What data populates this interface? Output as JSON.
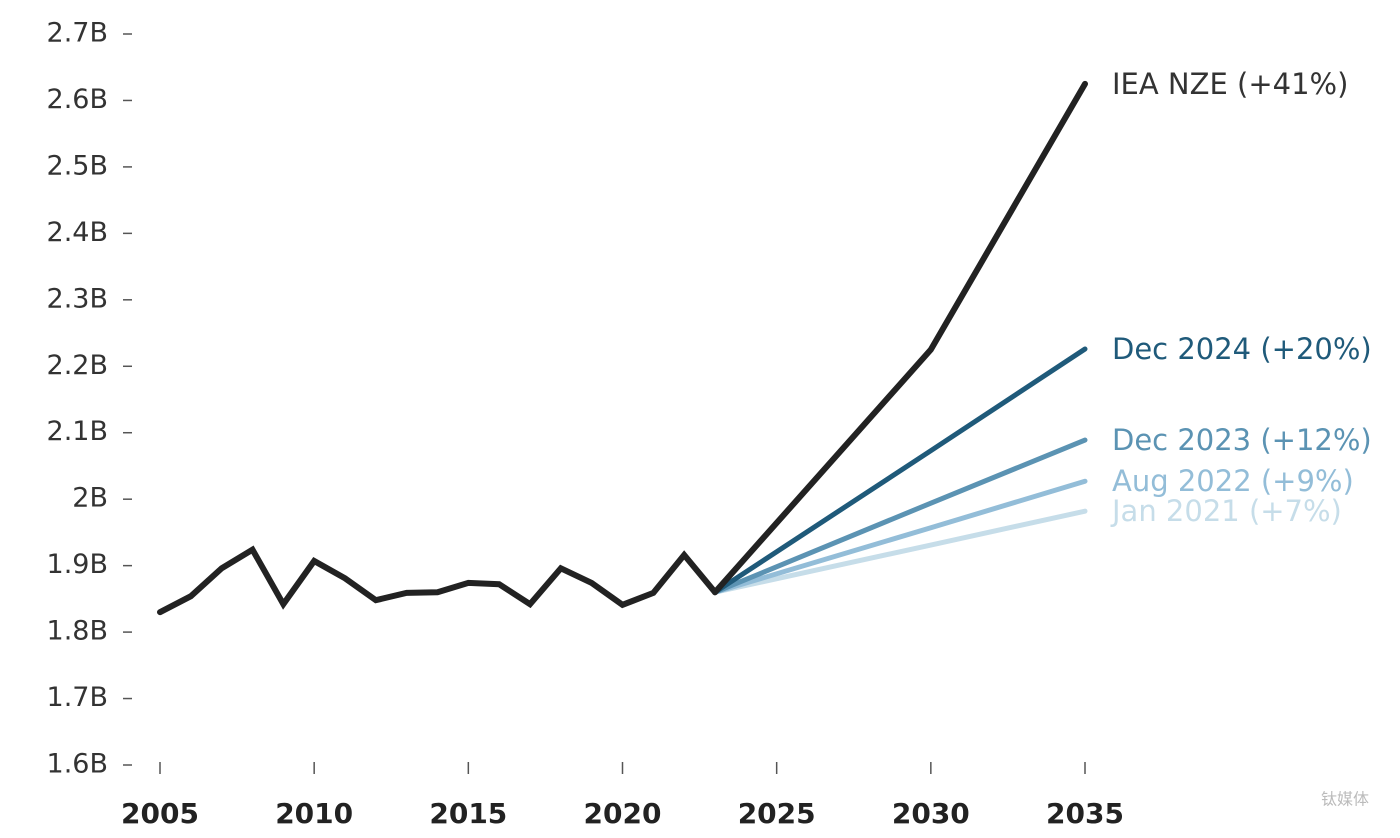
{
  "chart_data": {
    "type": "line",
    "x": [
      2005,
      2006,
      2007,
      2008,
      2009,
      2010,
      2011,
      2012,
      2013,
      2014,
      2015,
      2016,
      2017,
      2018,
      2019,
      2020,
      2021,
      2022,
      2023,
      2030,
      2035
    ],
    "series": [
      {
        "color": "#222222",
        "values": [
          1.83,
          1.854,
          1.896,
          1.924,
          1.842,
          1.907,
          1.881,
          1.848,
          1.859,
          1.86,
          1.874,
          1.872,
          1.842,
          1.896,
          1.874,
          1.841,
          1.859,
          1.916,
          1.86,
          null,
          null
        ]
      },
      {
        "name": "IEA NZE (+41%)",
        "color": "#222222",
        "values": [
          null,
          null,
          null,
          null,
          null,
          null,
          null,
          null,
          null,
          null,
          null,
          null,
          null,
          null,
          null,
          null,
          null,
          null,
          1.86,
          2.225,
          2.625
        ]
      },
      {
        "name": "Dec 2024 (+20%)",
        "color": "#1f5a7a",
        "values": [
          null,
          null,
          null,
          null,
          null,
          null,
          null,
          null,
          null,
          null,
          null,
          null,
          null,
          null,
          null,
          null,
          null,
          null,
          1.86,
          2.073,
          2.226
        ]
      },
      {
        "name": "Dec 2023 (+12%)",
        "color": "#5b93b3",
        "values": [
          null,
          null,
          null,
          null,
          null,
          null,
          null,
          null,
          null,
          null,
          null,
          null,
          null,
          null,
          null,
          null,
          null,
          null,
          1.86,
          1.994,
          2.089
        ]
      },
      {
        "name": "Aug 2022 (+9%)",
        "color": "#93bdd8",
        "values": [
          null,
          null,
          null,
          null,
          null,
          null,
          null,
          null,
          null,
          null,
          null,
          null,
          null,
          null,
          null,
          null,
          null,
          null,
          1.86,
          1.957,
          2.027
        ]
      },
      {
        "name": "Jan 2021 (+7%)",
        "color": "#c6dde9",
        "values": [
          null,
          null,
          null,
          null,
          null,
          null,
          null,
          null,
          null,
          null,
          null,
          null,
          null,
          null,
          null,
          null,
          null,
          null,
          1.86,
          1.931,
          1.982
        ]
      }
    ],
    "xlim": [
      2005,
      2035
    ],
    "xticks": [
      2005,
      2010,
      2015,
      2020,
      2025,
      2030,
      2035
    ],
    "ylim": [
      1.6,
      2.7
    ],
    "yticks": [
      {
        "value": 1.6,
        "label": "1.6B"
      },
      {
        "value": 1.7,
        "label": "1.7B"
      },
      {
        "value": 1.8,
        "label": "1.8B"
      },
      {
        "value": 1.9,
        "label": "1.9B"
      },
      {
        "value": 2.0,
        "label": "2B"
      },
      {
        "value": 2.1,
        "label": "2.1B"
      },
      {
        "value": 2.2,
        "label": "2.2B"
      },
      {
        "value": 2.3,
        "label": "2.3B"
      },
      {
        "value": 2.4,
        "label": "2.4B"
      },
      {
        "value": 2.5,
        "label": "2.5B"
      },
      {
        "value": 2.6,
        "label": "2.6B"
      },
      {
        "value": 2.7,
        "label": "2.7B"
      }
    ],
    "watermark": "钛媒体"
  }
}
